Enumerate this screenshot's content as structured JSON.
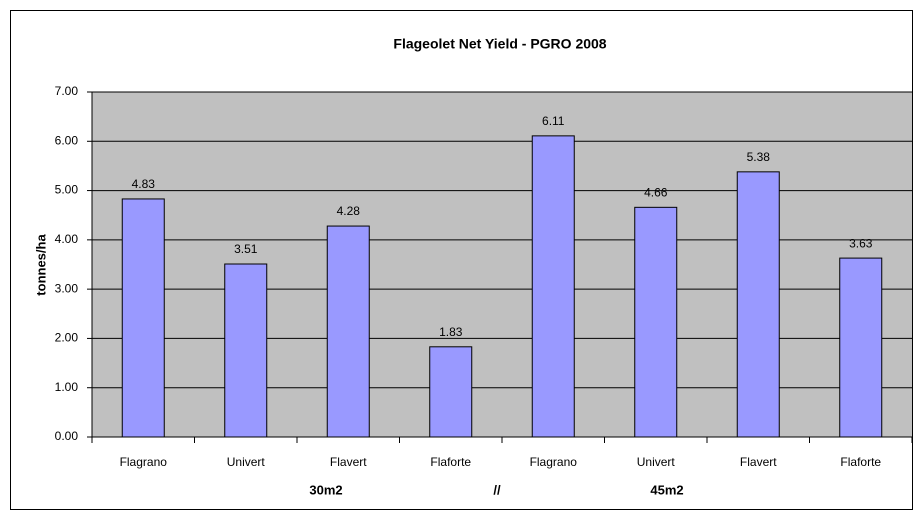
{
  "chart_data": {
    "type": "bar",
    "title": "Flageolet Net Yield - PGRO 2008",
    "y_label": "tonnes/ha",
    "categories": [
      "Flagrano",
      "Univert",
      "Flavert",
      "Flaforte",
      "Flagrano",
      "Univert",
      "Flavert",
      "Flaforte"
    ],
    "values": [
      4.83,
      3.51,
      4.28,
      1.83,
      6.11,
      4.66,
      5.38,
      3.63
    ],
    "group_labels": [
      "30m2",
      "//",
      "45m2"
    ],
    "color": "#9999ff",
    "ylim": [
      0,
      7
    ],
    "yticks": [
      {
        "value": 0,
        "label": "0.00"
      },
      {
        "value": 1,
        "label": "1.00"
      },
      {
        "value": 2,
        "label": "2.00"
      },
      {
        "value": 3,
        "label": "3.00"
      },
      {
        "value": 4,
        "label": "4.00"
      },
      {
        "value": 5,
        "label": "5.00"
      },
      {
        "value": 6,
        "label": "6.00"
      },
      {
        "value": 7,
        "label": "7.00"
      }
    ],
    "grid": true
  }
}
